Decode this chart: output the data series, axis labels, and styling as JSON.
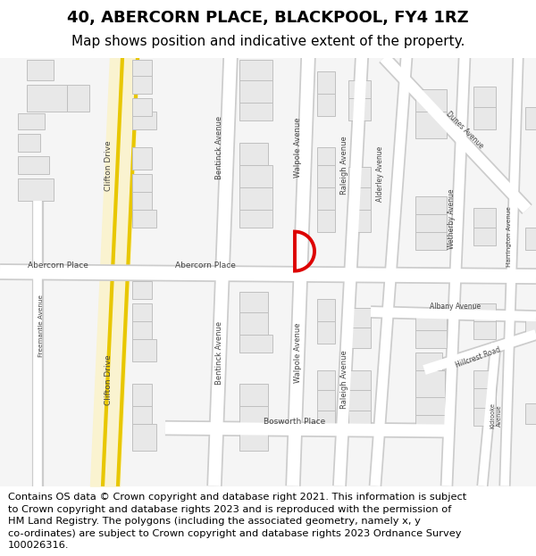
{
  "title_line1": "40, ABERCORN PLACE, BLACKPOOL, FY4 1RZ",
  "title_line2": "Map shows position and indicative extent of the property.",
  "copyright_text": "Contains OS data © Crown copyright and database right 2021. This information is subject to Crown copyright and database rights 2023 and is reproduced with the permission of HM Land Registry. The polygons (including the associated geometry, namely x, y co-ordinates) are subject to Crown copyright and database rights 2023 Ordnance Survey 100026316.",
  "bg_color": "#ffffff",
  "map_bg": "#f8f8f8",
  "road_fill": "#ffffff",
  "road_edge": "#cccccc",
  "clifton_fill": "#f5d060",
  "clifton_edge": "#c8a000",
  "bldg_fill": "#e8e8e8",
  "bldg_edge": "#c0c0c0",
  "plot_color": "#dd0000",
  "title_fs": 13,
  "sub_fs": 11,
  "copy_fs": 8.2,
  "label_fs": 7.0,
  "label_color": "#444444"
}
